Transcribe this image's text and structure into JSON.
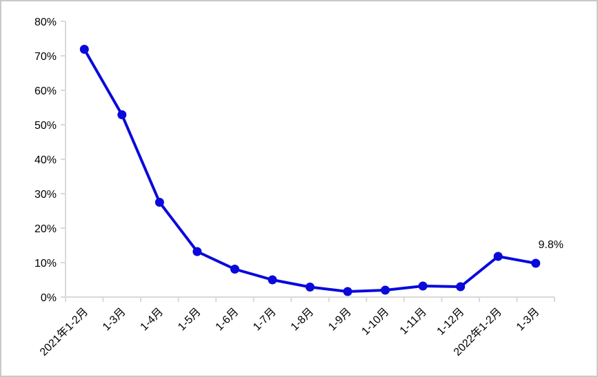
{
  "chart_data": {
    "type": "line",
    "title": "",
    "xlabel": "",
    "ylabel": "",
    "categories": [
      "2021年1-2月",
      "1-3月",
      "1-4月",
      "1-5月",
      "1-6月",
      "1-7月",
      "1-8月",
      "1-9月",
      "1-10月",
      "1-11月",
      "1-12月",
      "2022年1-2月",
      "1-3月"
    ],
    "values": [
      71.9,
      52.9,
      27.5,
      13.2,
      8.1,
      5.0,
      2.9,
      1.6,
      2.0,
      3.2,
      3.0,
      11.8,
      9.8
    ],
    "ylim": [
      0,
      80
    ],
    "ytick_step": 10,
    "ytick_labels": [
      "0%",
      "10%",
      "20%",
      "30%",
      "40%",
      "50%",
      "60%",
      "70%",
      "80%"
    ],
    "last_point_label": "9.8%",
    "grid": false,
    "legend_position": "none",
    "colors": {
      "line": "#0909DB",
      "marker": "#0909DB",
      "axis": "#D9D9D9",
      "text": "#000000",
      "background": "#FFFFFF",
      "border": "#C9C9C9"
    }
  }
}
